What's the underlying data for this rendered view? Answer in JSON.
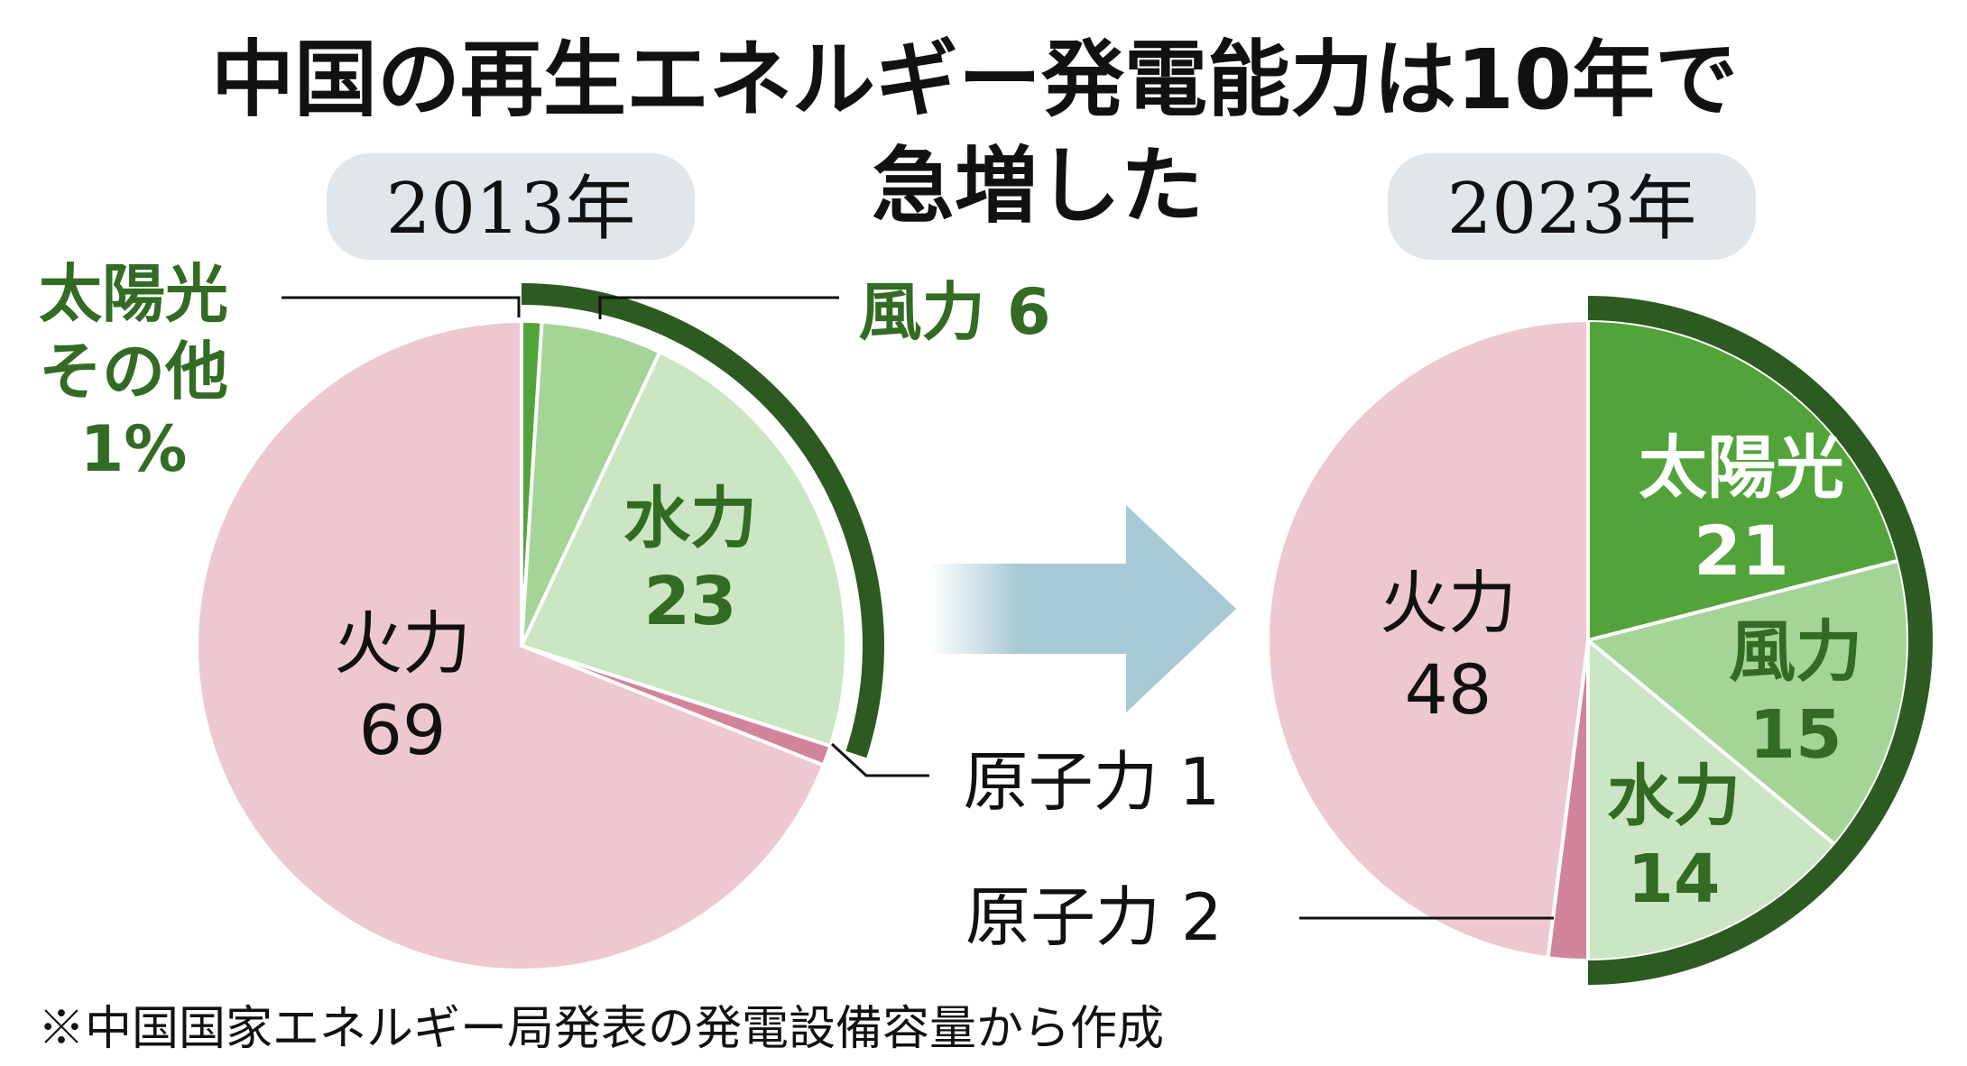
{
  "title_line1": "中国の再生エネルギー発電能力は10年で",
  "title_line2": "急増した",
  "note": "※中国国家エネルギー局発表の発電設備容量から作成",
  "colors": {
    "solar": "#52a43a",
    "wind": "#a5d497",
    "hydro": "#cbe6c2",
    "nuclear": "#d2849a",
    "thermal": "#eec8d1",
    "renewable_ring": "#2d5a20",
    "year_badge": "#e0e6e9",
    "arrow": "#a7c9d3"
  },
  "chart_data": [
    {
      "type": "pie",
      "year_label": "2013年",
      "unit": "%",
      "slices": [
        {
          "name": "太陽光その他",
          "value": 1,
          "label_lines": [
            "太陽光",
            "その他",
            "1%"
          ]
        },
        {
          "name": "風力",
          "value": 6,
          "label_lines": [
            "風力 6"
          ]
        },
        {
          "name": "水力",
          "value": 23,
          "label_lines": [
            "水力",
            "23"
          ]
        },
        {
          "name": "原子力",
          "value": 1,
          "label_lines": [
            "原子力 1"
          ]
        },
        {
          "name": "火力",
          "value": 69,
          "label_lines": [
            "火力",
            "69"
          ]
        }
      ],
      "renewable_ring": [
        "太陽光その他",
        "風力",
        "水力"
      ]
    },
    {
      "type": "pie",
      "year_label": "2023年",
      "unit": "%",
      "slices": [
        {
          "name": "太陽光",
          "value": 21,
          "label_lines": [
            "太陽光",
            "21"
          ]
        },
        {
          "name": "風力",
          "value": 15,
          "label_lines": [
            "風力",
            "15"
          ]
        },
        {
          "name": "水力",
          "value": 14,
          "label_lines": [
            "水力",
            "14"
          ]
        },
        {
          "name": "原子力",
          "value": 2,
          "label_lines": [
            "原子力 2"
          ]
        },
        {
          "name": "火力",
          "value": 48,
          "label_lines": [
            "火力",
            "48"
          ]
        }
      ],
      "renewable_ring": [
        "太陽光",
        "風力",
        "水力"
      ]
    }
  ]
}
